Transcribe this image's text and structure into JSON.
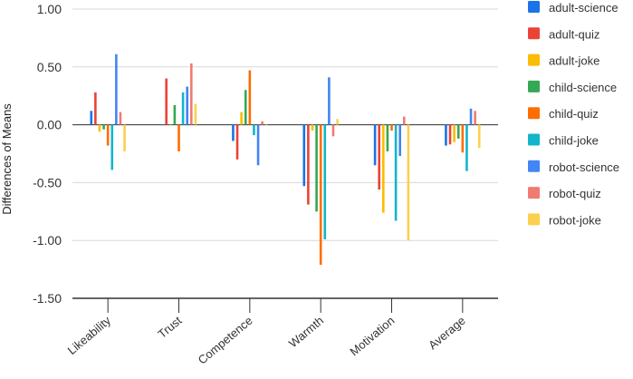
{
  "chart_data": {
    "type": "bar",
    "ylabel": "Differences of Means",
    "ylim": [
      -1.5,
      1.0
    ],
    "yticks": [
      1.0,
      0.5,
      0.0,
      -0.5,
      -1.0,
      -1.5
    ],
    "ytick_labels": [
      "1.00",
      "0.50",
      "0.00",
      "-0.50",
      "-1.00",
      "-1.50"
    ],
    "grid": true,
    "legend_position": "right",
    "categories": [
      "Likeability",
      "Trust",
      "Competence",
      "Warmth",
      "Motivation",
      "Average"
    ],
    "series": [
      {
        "name": "adult-science",
        "color": "#1a73e8",
        "values": [
          0.12,
          0.0,
          -0.14,
          -0.53,
          -0.35,
          -0.18
        ]
      },
      {
        "name": "adult-quiz",
        "color": "#ea4335",
        "values": [
          0.28,
          0.4,
          -0.3,
          -0.69,
          -0.56,
          -0.17
        ]
      },
      {
        "name": "adult-joke",
        "color": "#fbbc04",
        "values": [
          -0.06,
          0.0,
          0.11,
          -0.05,
          -0.76,
          -0.15
        ]
      },
      {
        "name": "child-science",
        "color": "#34a853",
        "values": [
          -0.04,
          0.17,
          0.3,
          -0.75,
          -0.23,
          -0.12
        ]
      },
      {
        "name": "child-quiz",
        "color": "#ff6d01",
        "values": [
          -0.18,
          -0.23,
          0.47,
          -1.21,
          -0.05,
          -0.24
        ]
      },
      {
        "name": "child-joke",
        "color": "#12b5cb",
        "values": [
          -0.39,
          0.28,
          -0.09,
          -0.99,
          -0.83,
          -0.4
        ]
      },
      {
        "name": "robot-science",
        "color": "#4285f4",
        "values": [
          0.61,
          0.33,
          -0.35,
          0.41,
          -0.27,
          0.14
        ]
      },
      {
        "name": "robot-quiz",
        "color": "#f07b72",
        "values": [
          0.11,
          0.53,
          0.03,
          -0.1,
          0.07,
          0.12
        ]
      },
      {
        "name": "robot-joke",
        "color": "#fcd04f",
        "values": [
          -0.23,
          0.18,
          0.0,
          0.05,
          -1.0,
          -0.2
        ]
      }
    ]
  }
}
